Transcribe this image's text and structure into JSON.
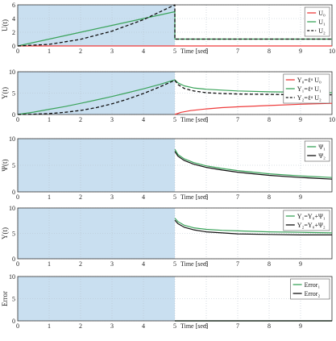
{
  "colors": {
    "shade": "#c9dff0",
    "red": "#ef3b3b",
    "green": "#3aa35a",
    "gray_dash": "#4a5568",
    "black": "#111111",
    "dark_green": "#2f7a3a",
    "grid": "#b8c4cc"
  },
  "time_label": "Time [sec]",
  "chart_data": [
    {
      "type": "line",
      "ylabel": "U(t)",
      "xlabel": "Time [sec]",
      "xlim": [
        0,
        10
      ],
      "ylim": [
        0,
        6
      ],
      "xticks": [
        0,
        1,
        2,
        3,
        4,
        5,
        6,
        7,
        8,
        9,
        10
      ],
      "yticks": [
        0,
        2,
        4,
        6
      ],
      "shaded_interval": [
        0,
        5
      ],
      "grid": true,
      "legend_position": "top-right",
      "series": [
        {
          "name": "U₀",
          "color": "red",
          "dash": false,
          "x": [
            0,
            5,
            5,
            10
          ],
          "y": [
            0,
            0,
            0,
            0
          ]
        },
        {
          "name": "U₁",
          "color": "green",
          "dash": false,
          "x": [
            0,
            1,
            2,
            3,
            4,
            5,
            5,
            10
          ],
          "y": [
            0,
            1,
            2,
            3,
            4,
            5,
            1,
            1
          ]
        },
        {
          "name": "U₂",
          "color": "black",
          "dash": true,
          "x": [
            0,
            1,
            2,
            3,
            4,
            5,
            5,
            10
          ],
          "y": [
            0,
            0.24,
            0.96,
            2.16,
            3.84,
            6.0,
            1,
            1
          ]
        }
      ]
    },
    {
      "type": "line",
      "ylabel": "Y(t)",
      "xlabel": "Time [sec]",
      "xlim": [
        0,
        10
      ],
      "ylim": [
        0,
        10
      ],
      "xticks": [
        0,
        1,
        2,
        3,
        4,
        5,
        6,
        7,
        8,
        9,
        10
      ],
      "yticks": [
        0,
        5,
        10
      ],
      "shaded_interval": [
        0,
        5
      ],
      "grid": true,
      "legend_position": "top-right",
      "series": [
        {
          "name": "Y₀=ℓᵅ U₀",
          "color": "red",
          "dash": false,
          "x": [
            5,
            5.2,
            5.5,
            6,
            6.5,
            7,
            8,
            9,
            10
          ],
          "y": [
            0,
            0.5,
            0.9,
            1.3,
            1.6,
            1.8,
            2.1,
            2.4,
            2.6
          ]
        },
        {
          "name": "Y₁=ℓᵅ U₁",
          "color": "green",
          "dash": false,
          "x": [
            0,
            0.5,
            1,
            1.5,
            2,
            2.5,
            3,
            3.5,
            4,
            4.5,
            5,
            5.1,
            5.3,
            5.6,
            6,
            6.5,
            7,
            8,
            9,
            10
          ],
          "y": [
            0,
            0.55,
            1.2,
            1.85,
            2.6,
            3.4,
            4.2,
            5.1,
            6.0,
            7.0,
            8.1,
            7.4,
            6.7,
            6.2,
            5.9,
            5.7,
            5.5,
            5.3,
            5.2,
            5.1
          ]
        },
        {
          "name": "Y₂=ℓᵅ U₂",
          "color": "black",
          "dash": true,
          "x": [
            0,
            0.5,
            1,
            1.5,
            2,
            2.5,
            3,
            3.5,
            4,
            4.5,
            5,
            5.1,
            5.3,
            5.6,
            6,
            6.5,
            7,
            8,
            9,
            10
          ],
          "y": [
            0,
            0.05,
            0.2,
            0.5,
            0.95,
            1.6,
            2.5,
            3.6,
            4.9,
            6.4,
            8.0,
            7.0,
            6.1,
            5.5,
            5.1,
            4.9,
            4.8,
            4.7,
            4.6,
            4.6
          ]
        }
      ]
    },
    {
      "type": "line",
      "ylabel": "Ψ(t)",
      "xlabel": "Time [sec]",
      "xlim": [
        0,
        10
      ],
      "ylim": [
        0,
        10
      ],
      "xticks": [
        0,
        1,
        2,
        3,
        4,
        5,
        6,
        7,
        8,
        9
      ],
      "yticks": [
        0,
        5,
        10
      ],
      "shaded_interval": [
        0,
        5
      ],
      "grid": true,
      "legend_position": "top-right",
      "series": [
        {
          "name": "Ψ₁",
          "color": "green",
          "dash": false,
          "x": [
            5,
            5.1,
            5.3,
            5.6,
            6,
            6.5,
            7,
            7.5,
            8,
            9,
            10
          ],
          "y": [
            8.0,
            7.0,
            6.2,
            5.5,
            4.9,
            4.4,
            4.0,
            3.7,
            3.4,
            3.0,
            2.7
          ]
        },
        {
          "name": "Ψ₂",
          "color": "black",
          "dash": false,
          "x": [
            5,
            5.1,
            5.3,
            5.6,
            6,
            6.5,
            7,
            7.5,
            8,
            9,
            10
          ],
          "y": [
            7.6,
            6.7,
            5.9,
            5.2,
            4.6,
            4.1,
            3.7,
            3.4,
            3.1,
            2.7,
            2.4
          ]
        }
      ]
    },
    {
      "type": "line",
      "ylabel": "Y(t)",
      "xlabel": "Time [sec]",
      "xlim": [
        0,
        10
      ],
      "ylim": [
        0,
        10
      ],
      "xticks": [
        0,
        1,
        2,
        3,
        4,
        5,
        6,
        7,
        8,
        9
      ],
      "yticks": [
        0,
        5,
        10
      ],
      "shaded_interval": [
        0,
        5
      ],
      "grid": true,
      "legend_position": "top-right",
      "series": [
        {
          "name": "Y₁=Y₀+Ψ₁",
          "color": "green",
          "dash": false,
          "x": [
            5,
            5.1,
            5.3,
            5.6,
            6,
            6.5,
            7,
            8,
            9,
            10
          ],
          "y": [
            8.0,
            7.3,
            6.6,
            6.1,
            5.8,
            5.6,
            5.5,
            5.3,
            5.2,
            5.1
          ]
        },
        {
          "name": "Y₂=Y₀+Ψ₂",
          "color": "black",
          "dash": false,
          "x": [
            5,
            5.1,
            5.3,
            5.6,
            6,
            6.5,
            7,
            8,
            9,
            10
          ],
          "y": [
            7.6,
            6.9,
            6.2,
            5.7,
            5.3,
            5.1,
            4.9,
            4.8,
            4.7,
            4.7
          ]
        }
      ]
    },
    {
      "type": "line",
      "ylabel": "Error",
      "xlabel": "Time [sec]",
      "xlim": [
        0,
        10
      ],
      "ylim": [
        0,
        10
      ],
      "xticks": [
        0,
        1,
        2,
        3,
        4,
        5,
        6,
        7,
        8,
        9
      ],
      "yticks": [
        0,
        5,
        10
      ],
      "shaded_interval": [
        0,
        5
      ],
      "grid": true,
      "legend_position": "top-right",
      "series": [
        {
          "name": "Error₁",
          "color": "green",
          "dash": false,
          "x": [
            5,
            10
          ],
          "y": [
            0,
            0
          ]
        },
        {
          "name": "Error₂",
          "color": "black",
          "dash": false,
          "x": [
            5,
            10
          ],
          "y": [
            0,
            0
          ]
        }
      ]
    }
  ]
}
